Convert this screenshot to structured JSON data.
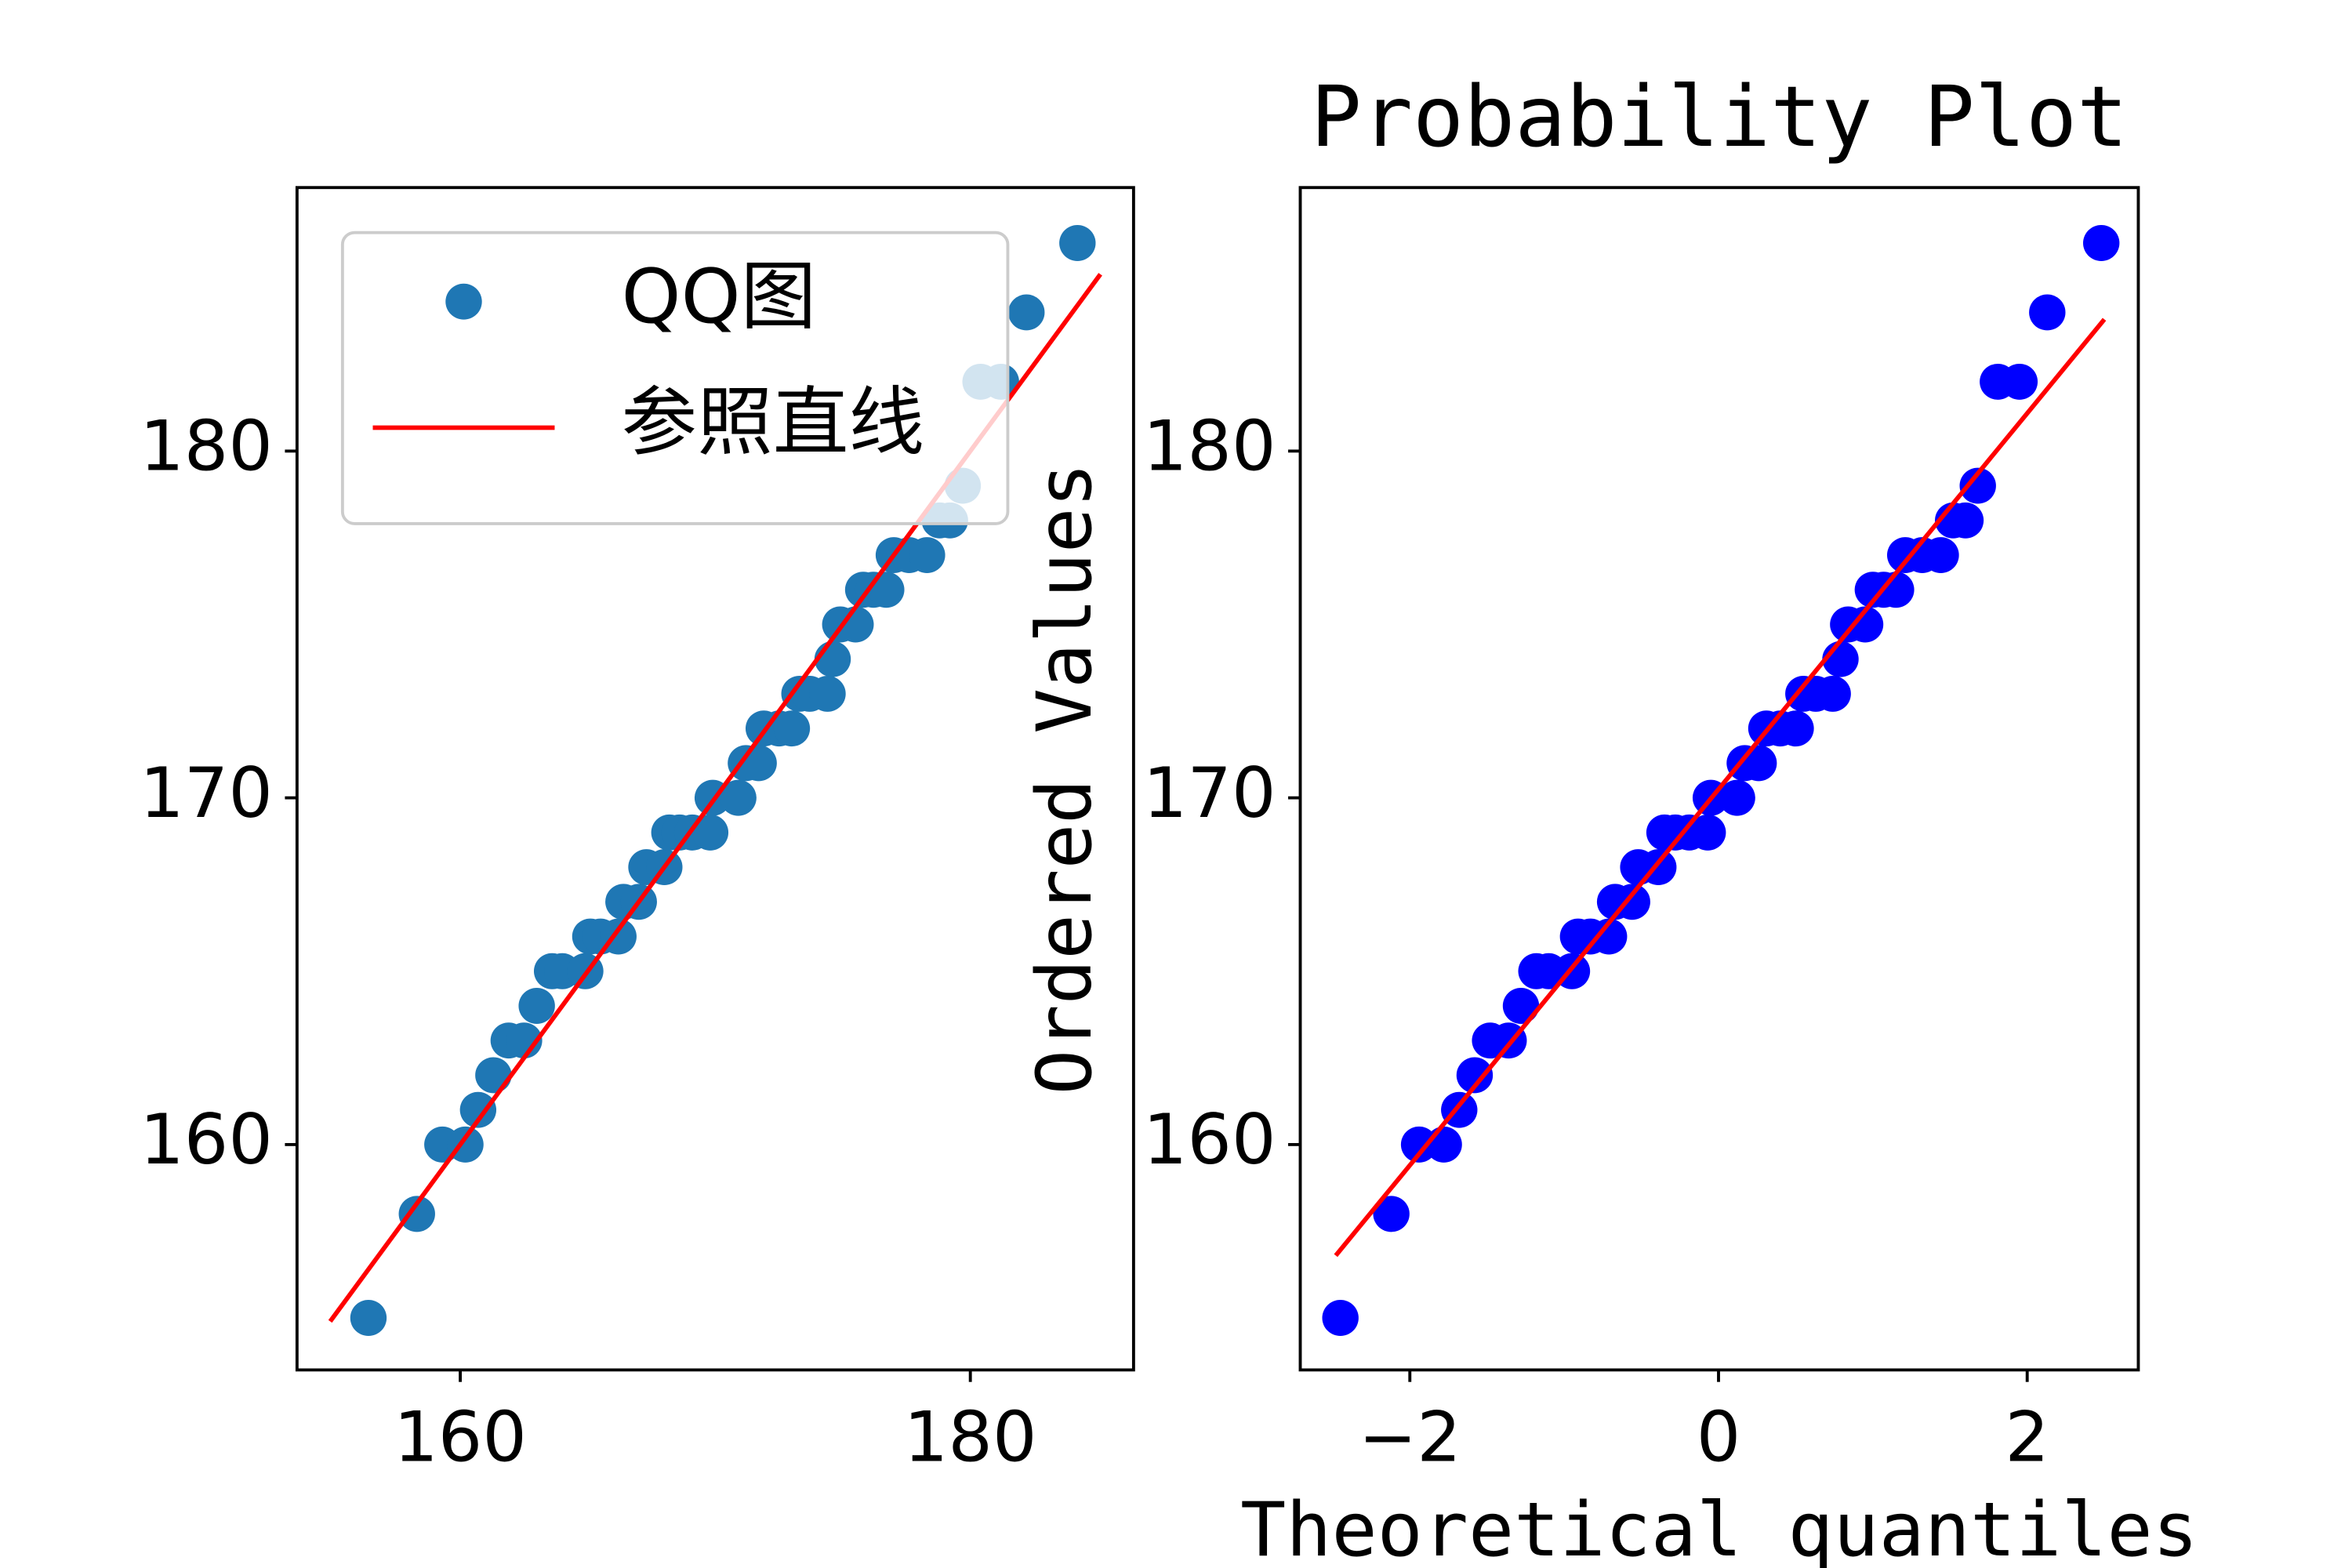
{
  "chart_data": [
    {
      "type": "scatter",
      "xlim": [
        153.6,
        186.4
      ],
      "ylim": [
        153.5,
        187.6
      ],
      "xticks": [
        160,
        180
      ],
      "yticks": [
        160,
        170,
        180
      ],
      "legend": "upper left",
      "series": [
        {
          "name": "QQ图",
          "color": "#1f77b4",
          "mode": "markers",
          "x": [
            156.4,
            158.3,
            159.3,
            160.2,
            160.7,
            161.3,
            161.9,
            162.5,
            163.0,
            163.6,
            164.0,
            164.9,
            165.1,
            165.5,
            166.2,
            166.4,
            167.0,
            167.3,
            168.0,
            168.2,
            168.6,
            169.1,
            169.8,
            169.9,
            170.9,
            171.2,
            171.7,
            171.9,
            172.5,
            173.0,
            173.3,
            173.7,
            174.4,
            174.6,
            174.9,
            175.5,
            175.8,
            176.2,
            176.7,
            177.0,
            177.6,
            178.3,
            178.8,
            179.2,
            179.7,
            180.4,
            181.2,
            182.2,
            184.2
          ],
          "values": [
            155,
            158,
            160,
            160,
            161,
            162,
            163,
            163,
            164,
            165,
            165,
            165,
            166,
            166,
            166,
            167,
            167,
            168,
            168,
            169,
            169,
            169,
            169,
            170,
            170,
            171,
            171,
            172,
            172,
            172,
            173,
            173,
            173,
            174,
            175,
            175,
            176,
            176,
            176,
            177,
            177,
            177,
            178,
            178,
            179,
            182,
            182,
            184,
            186
          ]
        },
        {
          "name": "参照直线",
          "color": "#ff0000",
          "mode": "line",
          "x": [
            154.9,
            185.1
          ],
          "values": [
            154.9,
            185.1
          ]
        }
      ]
    },
    {
      "type": "scatter",
      "title": "Probability Plot",
      "x_label": "Theoretical quantiles",
      "y_label": "Ordered Values",
      "xlim": [
        -2.71,
        2.72
      ],
      "ylim": [
        153.5,
        187.6
      ],
      "xticks": [
        {
          "value": -2,
          "label": "−2"
        },
        0,
        2
      ],
      "yticks": [
        160,
        170,
        180
      ],
      "series": [
        {
          "color": "#0000ff",
          "mode": "markers",
          "x": [
            -2.45,
            -2.12,
            -1.94,
            -1.78,
            -1.68,
            -1.58,
            -1.48,
            -1.36,
            -1.28,
            -1.18,
            -1.1,
            -0.95,
            -0.91,
            -0.83,
            -0.71,
            -0.67,
            -0.56,
            -0.52,
            -0.39,
            -0.35,
            -0.28,
            -0.19,
            -0.07,
            -0.05,
            0.12,
            0.17,
            0.26,
            0.31,
            0.4,
            0.5,
            0.55,
            0.63,
            0.74,
            0.79,
            0.84,
            0.95,
            1.0,
            1.07,
            1.15,
            1.21,
            1.32,
            1.44,
            1.52,
            1.6,
            1.68,
            1.81,
            1.95,
            2.13,
            2.48
          ],
          "values": [
            155,
            158,
            160,
            160,
            161,
            162,
            163,
            163,
            164,
            165,
            165,
            165,
            166,
            166,
            166,
            167,
            167,
            168,
            168,
            169,
            169,
            169,
            169,
            170,
            170,
            171,
            171,
            172,
            172,
            172,
            173,
            173,
            173,
            174,
            175,
            175,
            176,
            176,
            176,
            177,
            177,
            177,
            178,
            178,
            179,
            182,
            182,
            184,
            186
          ]
        },
        {
          "color": "#ff0000",
          "mode": "line",
          "x": [
            -2.48,
            2.5
          ],
          "values": [
            156.8,
            183.8
          ]
        }
      ]
    }
  ]
}
